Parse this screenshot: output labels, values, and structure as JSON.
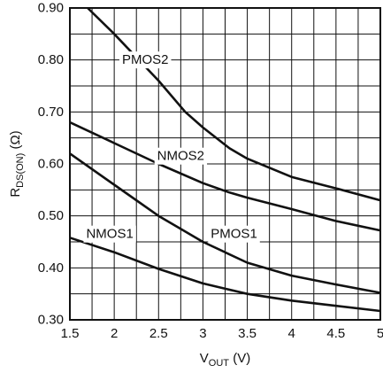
{
  "chart_data": {
    "type": "line",
    "title": "",
    "xlabel": {
      "main": "V",
      "sub": "OUT",
      "unit": " (V)"
    },
    "ylabel": {
      "main": "R",
      "sub": "DS(ON)",
      "unit": " (Ω)"
    },
    "xlim": [
      1.5,
      5
    ],
    "ylim": [
      0.3,
      0.9
    ],
    "grid": true,
    "x_ticks": [
      1.5,
      2,
      2.5,
      3,
      3.5,
      4,
      4.5,
      5
    ],
    "x_tick_labels": [
      "1.5",
      "2",
      "2.5",
      "3",
      "3.5",
      "4",
      "4.5",
      "5"
    ],
    "y_ticks": [
      0.3,
      0.4,
      0.5,
      0.6,
      0.7,
      0.8,
      0.9
    ],
    "y_tick_labels": [
      "0.30",
      "0.40",
      "0.50",
      "0.60",
      "0.70",
      "0.80",
      "0.90"
    ],
    "series": [
      {
        "name": "PMOS2",
        "x": [
          1.7,
          2.0,
          2.5,
          2.8,
          3.0,
          3.3,
          3.5,
          4.0,
          4.5,
          5.0
        ],
        "y": [
          0.9,
          0.85,
          0.76,
          0.7,
          0.67,
          0.63,
          0.61,
          0.575,
          0.553,
          0.53
        ]
      },
      {
        "name": "NMOS2",
        "x": [
          1.5,
          2.0,
          2.5,
          3.0,
          3.3,
          3.5,
          4.0,
          4.5,
          5.0
        ],
        "y": [
          0.68,
          0.64,
          0.6,
          0.563,
          0.545,
          0.535,
          0.513,
          0.49,
          0.472
        ]
      },
      {
        "name": "PMOS1",
        "x": [
          1.5,
          2.0,
          2.5,
          3.0,
          3.5,
          4.0,
          4.5,
          5.0
        ],
        "y": [
          0.62,
          0.56,
          0.5,
          0.45,
          0.41,
          0.385,
          0.368,
          0.352
        ]
      },
      {
        "name": "NMOS1",
        "x": [
          1.5,
          2.0,
          2.5,
          3.0,
          3.5,
          4.0,
          4.5,
          5.0
        ],
        "y": [
          0.458,
          0.43,
          0.398,
          0.37,
          0.35,
          0.337,
          0.327,
          0.317
        ]
      }
    ],
    "series_labels": [
      {
        "name": "PMOS2",
        "x": 2.35,
        "y": 0.8
      },
      {
        "name": "NMOS2",
        "x": 2.75,
        "y": 0.615
      },
      {
        "name": "PMOS1",
        "x": 3.35,
        "y": 0.465
      },
      {
        "name": "NMOS1",
        "x": 1.95,
        "y": 0.465
      }
    ]
  }
}
